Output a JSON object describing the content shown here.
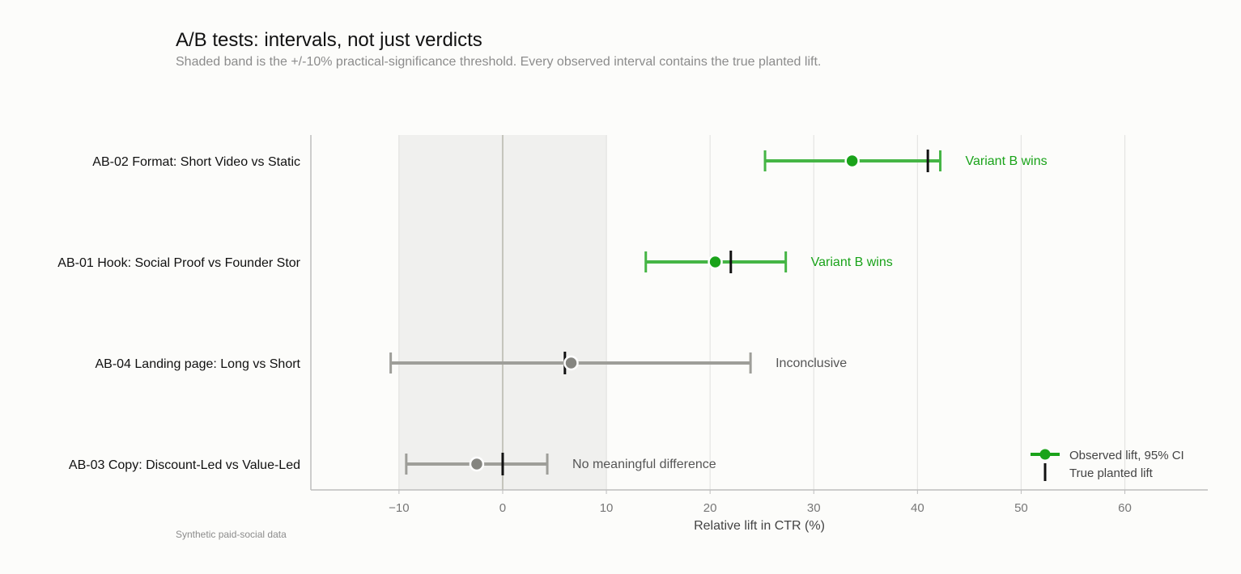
{
  "header": {
    "title": "A/B tests: intervals, not just verdicts",
    "subtitle": "Shaded band is the +/-10% practical-significance threshold. Every observed interval contains the true planted lift.",
    "footnote": "Synthetic paid-social data"
  },
  "colors": {
    "win": "#1aa31a",
    "win_line": "#45b545",
    "neutral_line": "#9e9e99",
    "neutral_point": "#858580",
    "true_marker": "#111111",
    "band": "#f0f0ee",
    "grid": "#e4e4e2",
    "verdict_neutral": "#555555"
  },
  "chart_data": {
    "type": "errorbar",
    "title": "A/B tests: intervals, not just verdicts",
    "subtitle": "Shaded band is the +/-10% practical-significance threshold. Every observed interval contains the true planted lift.",
    "xlabel": "Relative lift in CTR (%)",
    "ylabel": "",
    "xlim": [
      -18.5,
      68
    ],
    "xticks": [
      -10,
      0,
      10,
      20,
      30,
      40,
      50,
      60
    ],
    "xtick_labels": [
      "−10",
      "0",
      "10",
      "20",
      "30",
      "40",
      "50",
      "60"
    ],
    "threshold_band": [
      -10,
      10
    ],
    "grid": "vertical",
    "legend_position": "bottom-right",
    "legend": [
      {
        "label": "Observed lift, 95% CI",
        "kind": "point-errorbar"
      },
      {
        "label": "True planted lift",
        "kind": "tick"
      }
    ],
    "tests": [
      {
        "label": "AB-02  Format: Short Video vs Static",
        "observed": 33.7,
        "ci_low": 25.3,
        "ci_high": 42.2,
        "true_lift": 41.0,
        "verdict": "Variant B wins",
        "status": "win"
      },
      {
        "label": "AB-01  Hook: Social Proof vs Founder Stor",
        "observed": 20.5,
        "ci_low": 13.8,
        "ci_high": 27.3,
        "true_lift": 22.0,
        "verdict": "Variant B wins",
        "status": "win"
      },
      {
        "label": "AB-04  Landing page: Long vs Short",
        "observed": 6.6,
        "ci_low": -10.8,
        "ci_high": 23.9,
        "true_lift": 6.0,
        "verdict": "Inconclusive",
        "status": "neutral"
      },
      {
        "label": "AB-03  Copy: Discount-Led vs Value-Led",
        "observed": -2.5,
        "ci_low": -9.3,
        "ci_high": 4.3,
        "true_lift": 0.0,
        "verdict": "No meaningful difference",
        "status": "neutral"
      }
    ]
  }
}
